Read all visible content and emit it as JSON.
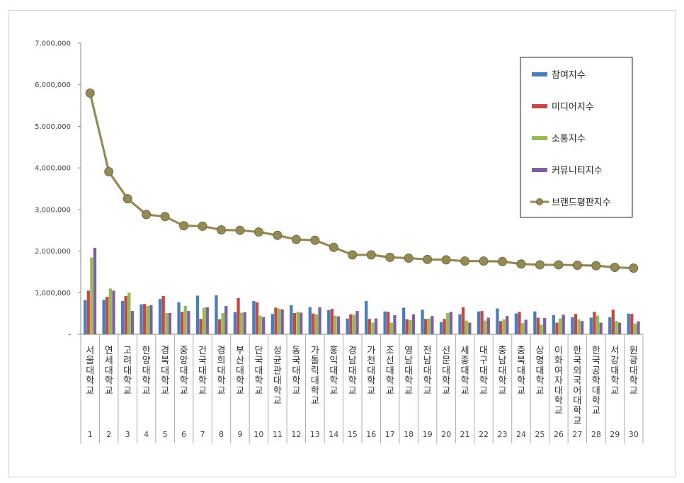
{
  "chart_data": {
    "type": "bar",
    "categories": [
      "서울대학교",
      "연세대학교",
      "고려대학교",
      "한양대학교",
      "경북대학교",
      "중앙대학교",
      "건국대학교",
      "경희대학교",
      "부산대학교",
      "단국대학교",
      "성균관대학교",
      "동국대학교",
      "가톨릭대학교",
      "홍익대학교",
      "경남대학교",
      "가천대학교",
      "조선대학교",
      "영남대학교",
      "전남대학교",
      "선문대학교",
      "세종대학교",
      "대구대학교",
      "충남대학교",
      "충북대학교",
      "상명대학교",
      "이화여자대학교",
      "한국외국어대학교",
      "한국공학대학교",
      "서강대학교",
      "원광대학교"
    ],
    "ranks": [
      "1",
      "2",
      "3",
      "4",
      "5",
      "6",
      "7",
      "8",
      "9",
      "10",
      "11",
      "12",
      "13",
      "14",
      "15",
      "16",
      "17",
      "18",
      "19",
      "20",
      "21",
      "22",
      "23",
      "24",
      "25",
      "26",
      "27",
      "28",
      "29",
      "30"
    ],
    "ylim": [
      0,
      7000000
    ],
    "yticks": [
      "-",
      "1,000,000",
      "2,000,000",
      "3,000,000",
      "4,000,000",
      "5,000,000",
      "6,000,000",
      "7,000,000"
    ],
    "grid": false,
    "legend_position": "top-right",
    "series": [
      {
        "name": "참여지수",
        "kind": "bar",
        "color": "#4a7ebb",
        "values": [
          820000,
          830000,
          800000,
          720000,
          850000,
          770000,
          930000,
          940000,
          530000,
          800000,
          490000,
          700000,
          650000,
          580000,
          380000,
          800000,
          550000,
          640000,
          590000,
          290000,
          480000,
          550000,
          620000,
          500000,
          550000,
          460000,
          410000,
          400000,
          410000,
          500000
        ]
      },
      {
        "name": "미디어지수",
        "kind": "bar",
        "color": "#be4b48",
        "values": [
          1050000,
          900000,
          920000,
          730000,
          920000,
          540000,
          370000,
          360000,
          870000,
          770000,
          640000,
          510000,
          500000,
          610000,
          480000,
          370000,
          540000,
          360000,
          370000,
          370000,
          650000,
          560000,
          320000,
          540000,
          400000,
          280000,
          490000,
          540000,
          590000,
          490000
        ]
      },
      {
        "name": "소통지수",
        "kind": "bar",
        "color": "#98b954",
        "values": [
          1850000,
          1100000,
          1000000,
          680000,
          510000,
          680000,
          640000,
          510000,
          520000,
          450000,
          620000,
          540000,
          480000,
          450000,
          470000,
          280000,
          280000,
          340000,
          380000,
          510000,
          330000,
          330000,
          360000,
          270000,
          230000,
          380000,
          360000,
          450000,
          320000,
          260000
        ]
      },
      {
        "name": "커뮤니티지수",
        "kind": "bar",
        "color": "#7d60a0",
        "values": [
          2080000,
          1050000,
          560000,
          700000,
          510000,
          560000,
          650000,
          680000,
          530000,
          410000,
          600000,
          520000,
          650000,
          430000,
          560000,
          380000,
          460000,
          480000,
          440000,
          540000,
          280000,
          400000,
          440000,
          350000,
          390000,
          470000,
          320000,
          280000,
          280000,
          310000
        ]
      },
      {
        "name": "브랜드평판지수",
        "kind": "line",
        "color": "#948a54",
        "values": [
          5800000,
          3910000,
          3260000,
          2880000,
          2830000,
          2610000,
          2600000,
          2510000,
          2500000,
          2460000,
          2380000,
          2280000,
          2260000,
          2090000,
          1910000,
          1910000,
          1850000,
          1830000,
          1800000,
          1790000,
          1760000,
          1760000,
          1750000,
          1690000,
          1670000,
          1670000,
          1660000,
          1650000,
          1610000,
          1590000
        ]
      }
    ]
  }
}
